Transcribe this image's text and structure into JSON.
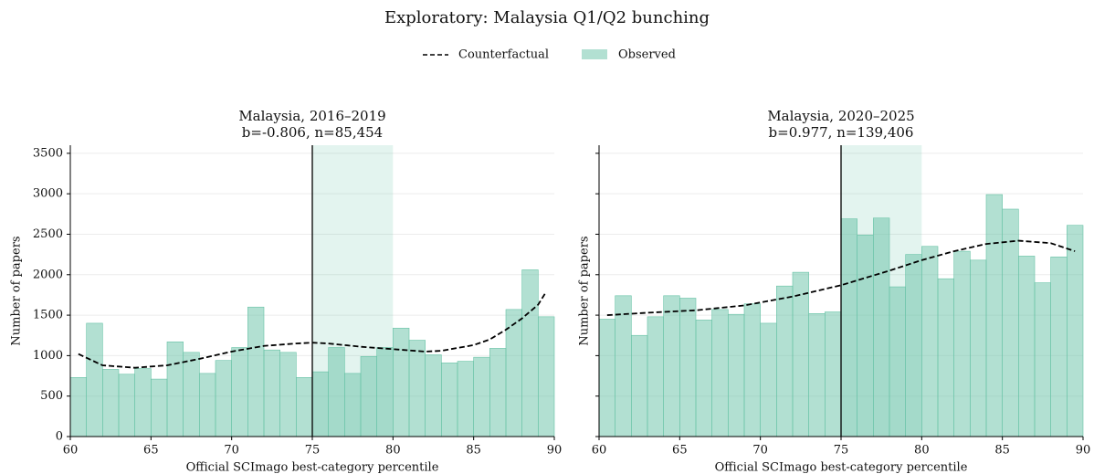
{
  "title": "Exploratory: Malaysia Q1/Q2 bunching",
  "legend": [
    {
      "label": "Counterfactual",
      "color": "#000000",
      "style": "dashed"
    },
    {
      "label": "Observed",
      "color": "#66c2a5",
      "style": "patch"
    }
  ],
  "chart_data": [
    {
      "type": "histogram",
      "title": "Malaysia, 2016–2019",
      "subtitle": "b=-0.806, n=85,454",
      "xlabel": "Official SCImago best-category percentile",
      "ylabel": "Number of papers",
      "bins": [
        60,
        61,
        62,
        63,
        64,
        65,
        66,
        67,
        68,
        69,
        70,
        71,
        72,
        73,
        74,
        75,
        76,
        77,
        78,
        79,
        80,
        81,
        82,
        83,
        84,
        85,
        86,
        87,
        88,
        89,
        90
      ],
      "values": [
        730,
        1400,
        830,
        770,
        840,
        710,
        1170,
        1040,
        780,
        940,
        1100,
        1600,
        1070,
        1040,
        730,
        800,
        1100,
        780,
        990,
        1100,
        1340,
        1190,
        1010,
        910,
        930,
        980,
        1090,
        1570,
        2060,
        1480
      ],
      "color": "#66c2a5",
      "counterfactual": {
        "x": [
          60.5,
          62,
          64,
          66,
          68,
          70,
          72,
          74,
          75,
          76,
          78,
          80,
          82,
          83,
          85,
          86,
          87,
          88,
          89,
          89.5
        ],
        "values": [
          1020,
          880,
          850,
          880,
          960,
          1050,
          1120,
          1150,
          1160,
          1150,
          1110,
          1080,
          1050,
          1060,
          1130,
          1200,
          1320,
          1460,
          1630,
          1790
        ]
      },
      "threshold": 75,
      "highlight": [
        75,
        80
      ],
      "xlim": [
        60,
        90
      ],
      "ylim": [
        0,
        3600
      ],
      "xticks": [
        60,
        65,
        70,
        75,
        80,
        85,
        90
      ],
      "yticks": [
        0,
        500,
        1000,
        1500,
        2000,
        2500,
        3000,
        3500
      ],
      "ytick_labels": true,
      "grid": true
    },
    {
      "type": "histogram",
      "title": "Malaysia, 2020–2025",
      "subtitle": "b=0.977, n=139,406",
      "xlabel": "Official SCImago best-category percentile",
      "ylabel": "Number of papers",
      "bins": [
        60,
        61,
        62,
        63,
        64,
        65,
        66,
        67,
        68,
        69,
        70,
        71,
        72,
        73,
        74,
        75,
        76,
        77,
        78,
        79,
        80,
        81,
        82,
        83,
        84,
        85,
        86,
        87,
        88,
        89,
        90
      ],
      "values": [
        1450,
        1740,
        1250,
        1480,
        1740,
        1710,
        1440,
        1570,
        1510,
        1640,
        1400,
        1860,
        2030,
        1520,
        1540,
        2690,
        2490,
        2700,
        1850,
        2250,
        2350,
        1950,
        2290,
        2180,
        2990,
        2810,
        2230,
        1900,
        2220,
        2610
      ],
      "color": "#66c2a5",
      "counterfactual": {
        "x": [
          60.5,
          63,
          66,
          69,
          72,
          75,
          78,
          80,
          82,
          84,
          86,
          88,
          89.5
        ],
        "values": [
          1500,
          1530,
          1560,
          1620,
          1730,
          1870,
          2050,
          2180,
          2290,
          2380,
          2420,
          2390,
          2290
        ]
      },
      "threshold": 75,
      "highlight": [
        75,
        80
      ],
      "xlim": [
        60,
        90
      ],
      "ylim": [
        0,
        3600
      ],
      "xticks": [
        60,
        65,
        70,
        75,
        80,
        85,
        90
      ],
      "yticks": [
        0,
        500,
        1000,
        1500,
        2000,
        2500,
        3000,
        3500
      ],
      "ytick_labels": false,
      "grid": true
    }
  ]
}
